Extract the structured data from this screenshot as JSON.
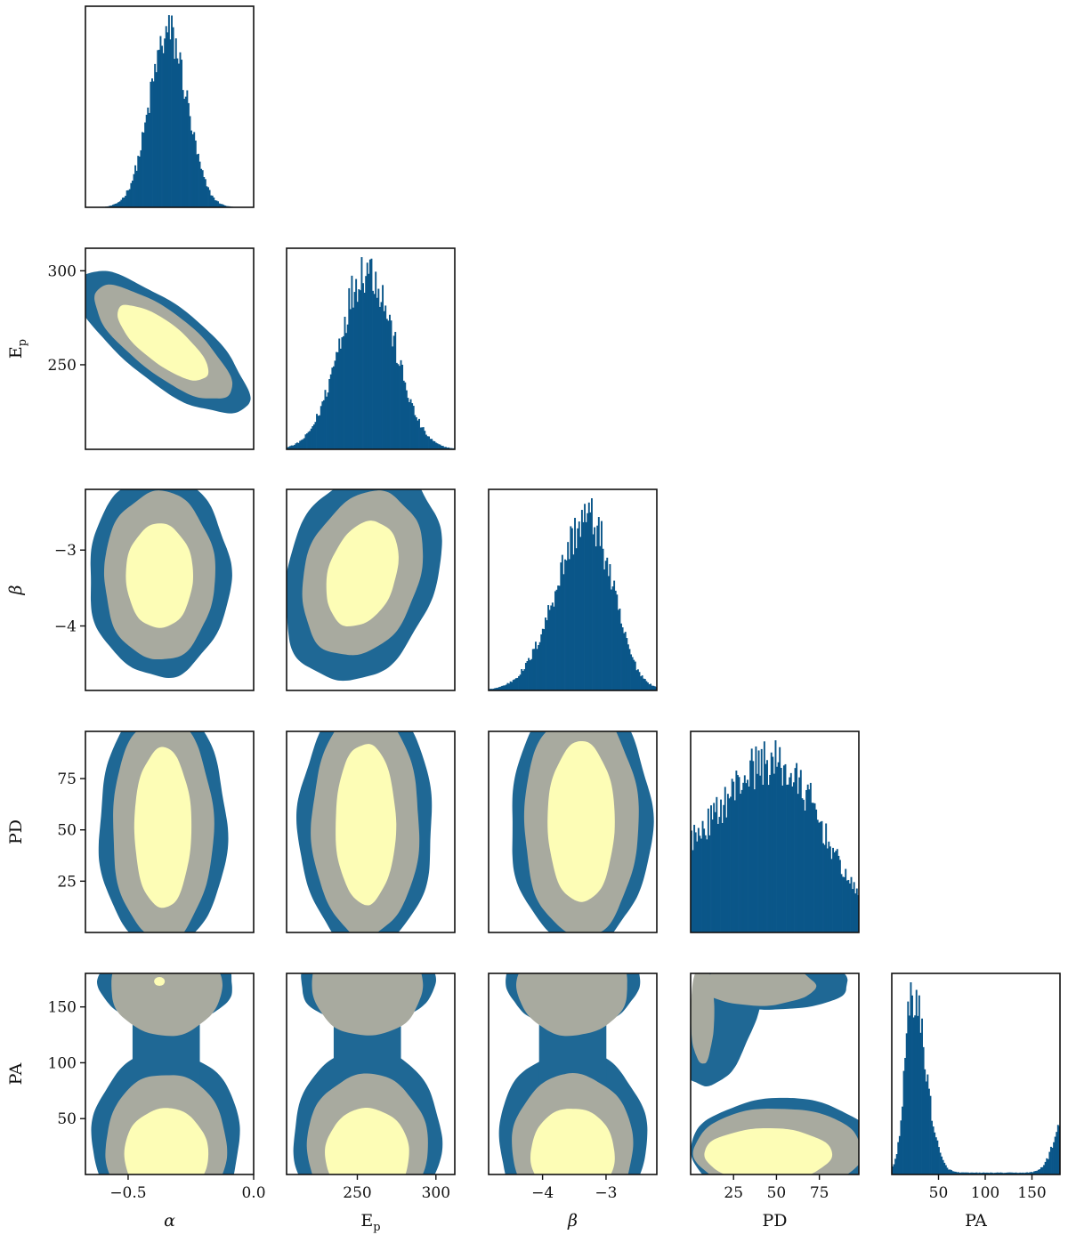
{
  "chart_data": {
    "type": "corner",
    "parameters": [
      {
        "key": "alpha",
        "label": "α",
        "range": [
          -0.67,
          0.0
        ],
        "ticks": [
          -0.5,
          0.0
        ],
        "tick_labels": [
          "−0.5",
          "0.0"
        ],
        "mean": -0.34,
        "sd": 0.08
      },
      {
        "key": "Ep",
        "label": "E",
        "label_sub": "p",
        "range": [
          205,
          312
        ],
        "ticks": [
          250,
          300
        ],
        "tick_labels": [
          "250",
          "300"
        ],
        "mean": 256,
        "sd": 17
      },
      {
        "key": "beta",
        "label": "β",
        "range": [
          -4.85,
          -2.2
        ],
        "ticks": [
          -4,
          -3
        ],
        "tick_labels": [
          "−4",
          "−3"
        ],
        "mean": -3.3,
        "sd": 0.45
      },
      {
        "key": "PD",
        "label": "PD",
        "range": [
          0,
          98
        ],
        "ticks": [
          25,
          50,
          75
        ],
        "tick_labels": [
          "25",
          "50",
          "75"
        ],
        "mean": 45,
        "sd": 30
      },
      {
        "key": "PA",
        "label": "PA",
        "range": [
          0,
          180
        ],
        "ticks": [
          50,
          100,
          150
        ],
        "tick_labels": [
          "50",
          "100",
          "150"
        ],
        "mean": 25,
        "sd": 20
      }
    ],
    "correlation_alpha_Ep": -0.85,
    "contour_levels": [
      "68%",
      "95%",
      "99%"
    ],
    "colors": {
      "hist": "#0a5689",
      "contour_outer": "#1f6895",
      "contour_middle": "#a8aa9f",
      "contour_inner": "#fdfdb6",
      "frame": "#111111"
    },
    "histograms": {
      "alpha": {
        "bins": 120,
        "mean": -0.34,
        "sd": 0.08
      },
      "Ep": {
        "bins": 120,
        "mean": 256,
        "sd": 17
      },
      "beta": {
        "bins": 120,
        "mean": -3.3,
        "sd": 0.45,
        "skew": "left"
      },
      "PD": {
        "bins": 120,
        "peak": 45,
        "range": [
          0,
          98
        ]
      },
      "PA": {
        "bins": 120,
        "peak": 23,
        "range": [
          0,
          180
        ],
        "wraps_at": 180
      }
    }
  }
}
